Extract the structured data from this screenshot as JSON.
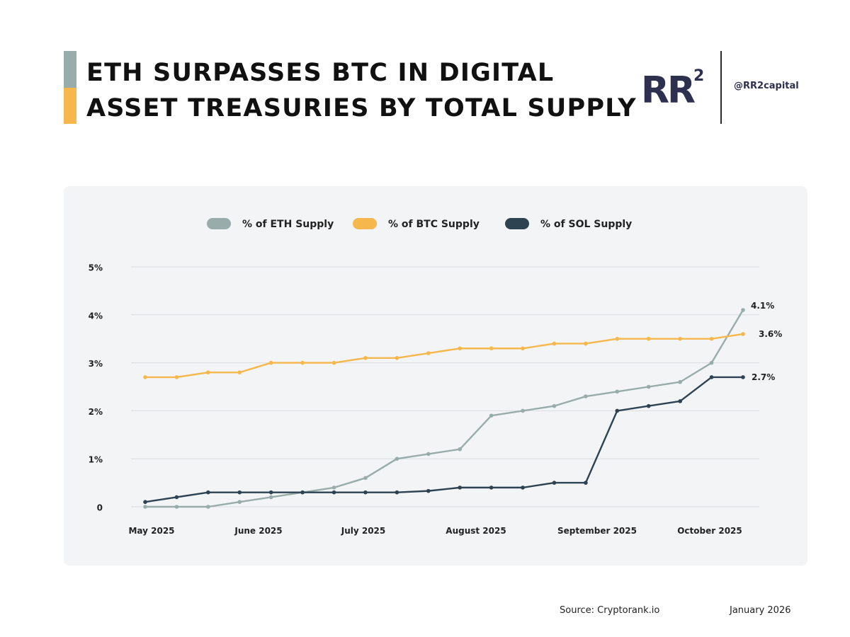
{
  "header": {
    "title_line1": "ETH SURPASSES BTC IN DIGITAL",
    "title_line2": "ASSET TREASURIES BY TOTAL SUPPLY",
    "logo_text": "RR",
    "logo_superscript": "2",
    "handle": "@RR2capital"
  },
  "colors": {
    "eth": "#98ADAA",
    "btc": "#F6B74C",
    "sol": "#2D4352",
    "accent_top": "#98ADAA",
    "accent_bottom": "#F6B74C"
  },
  "chart_data": {
    "type": "line",
    "title": "",
    "xlabel": "",
    "ylabel": "",
    "ylim": [
      0,
      5
    ],
    "y_ticks": [
      "0",
      "1%",
      "2%",
      "3%",
      "4%",
      "5%"
    ],
    "x_tick_labels": [
      "May 2025",
      "June 2025",
      "July 2025",
      "August 2025",
      "September 2025",
      "October 2025"
    ],
    "grid": "horizontal",
    "legend_position": "top-center",
    "series": [
      {
        "name": "% of ETH Supply",
        "values": [
          0.0,
          0.0,
          0.0,
          0.1,
          0.2,
          0.3,
          0.4,
          0.6,
          1.0,
          1.1,
          1.2,
          1.9,
          2.0,
          2.1,
          2.3,
          2.4,
          2.5,
          2.6,
          3.0,
          4.1
        ],
        "end_label": "4.1%"
      },
      {
        "name": "% of BTC Supply",
        "values": [
          2.7,
          2.7,
          2.8,
          2.8,
          3.0,
          3.0,
          3.0,
          3.1,
          3.1,
          3.2,
          3.3,
          3.3,
          3.3,
          3.4,
          3.4,
          3.5,
          3.5,
          3.5,
          3.5,
          3.6
        ],
        "end_label": "3.6%"
      },
      {
        "name": "% of SOL Supply",
        "values": [
          0.1,
          0.2,
          0.3,
          0.3,
          0.3,
          0.3,
          0.3,
          0.3,
          0.3,
          0.33,
          0.4,
          0.4,
          0.4,
          0.5,
          0.5,
          2.0,
          2.1,
          2.2,
          2.7,
          2.7
        ],
        "end_label": "2.7%"
      }
    ]
  },
  "footer": {
    "source": "Source: Cryptorank.io",
    "date": "January 2026"
  }
}
